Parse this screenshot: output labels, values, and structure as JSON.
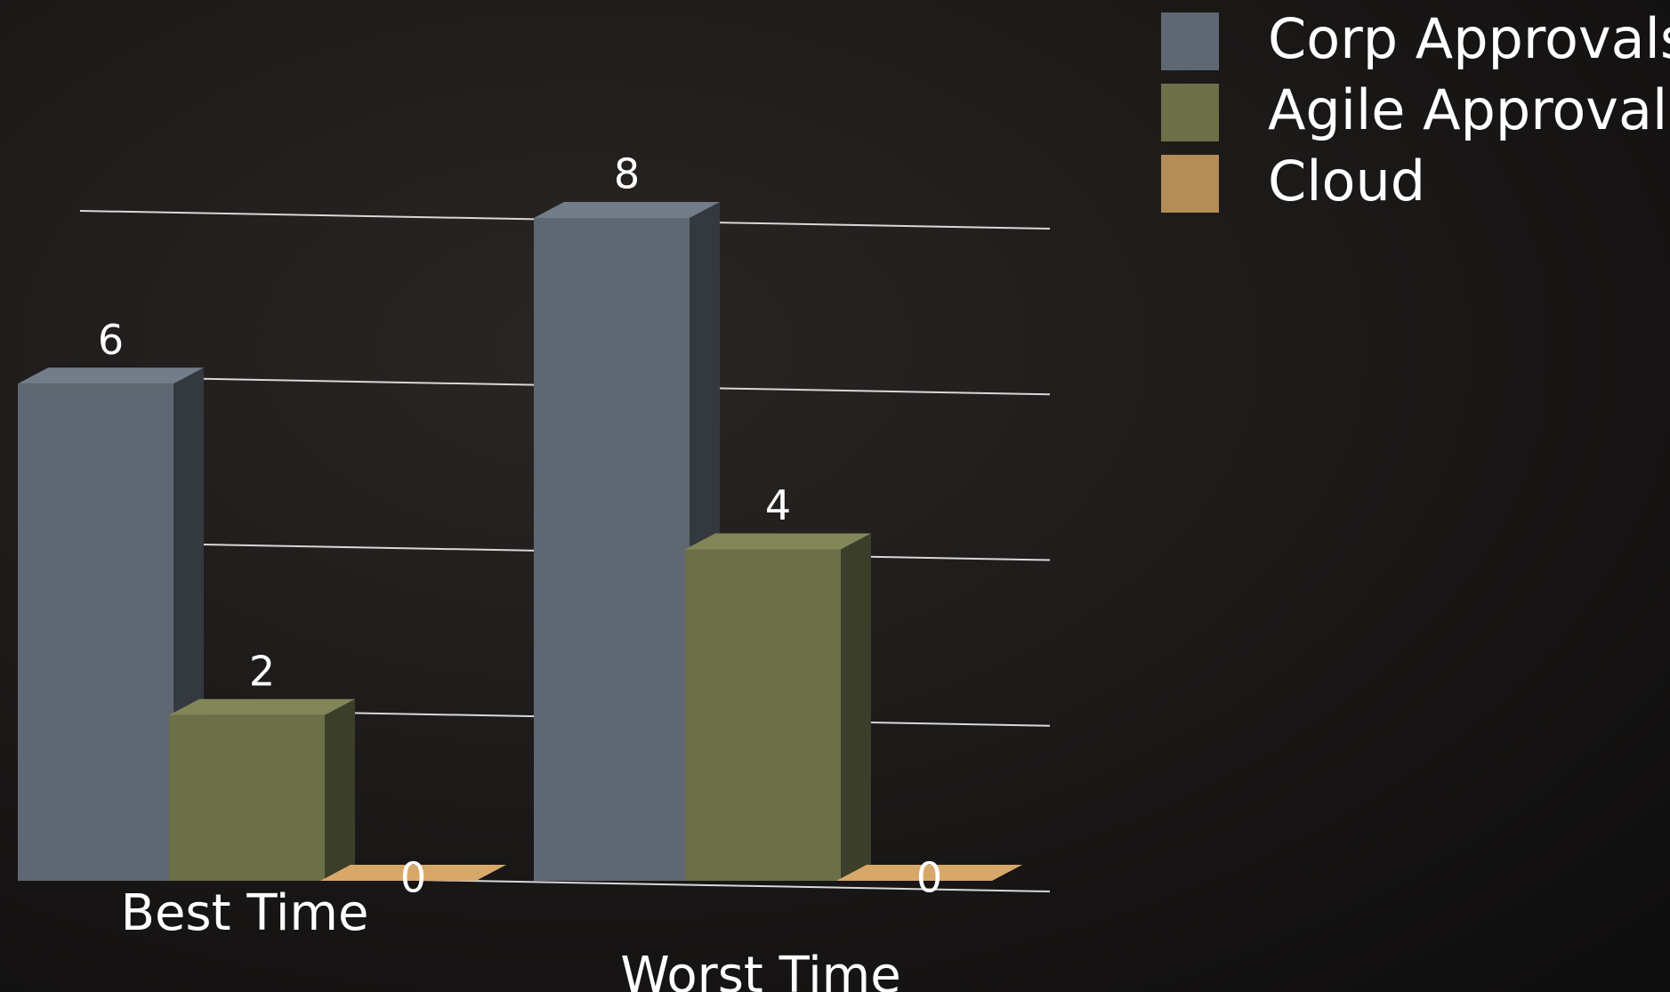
{
  "chart_data": {
    "type": "bar3d",
    "categories": [
      "Best Time",
      "Worst Time"
    ],
    "series": [
      {
        "name": "Corp Approvals",
        "color": "#5f6872",
        "values": [
          6,
          8
        ]
      },
      {
        "name": "Agile Approvals",
        "color": "#6c7049",
        "values": [
          2,
          4
        ]
      },
      {
        "name": "Cloud",
        "color": "#b48c58",
        "values": [
          0,
          0
        ]
      }
    ],
    "ylim": [
      0,
      8
    ],
    "yticks": [
      0,
      2,
      4,
      6,
      8
    ],
    "grid": true,
    "legend": "top-right"
  }
}
